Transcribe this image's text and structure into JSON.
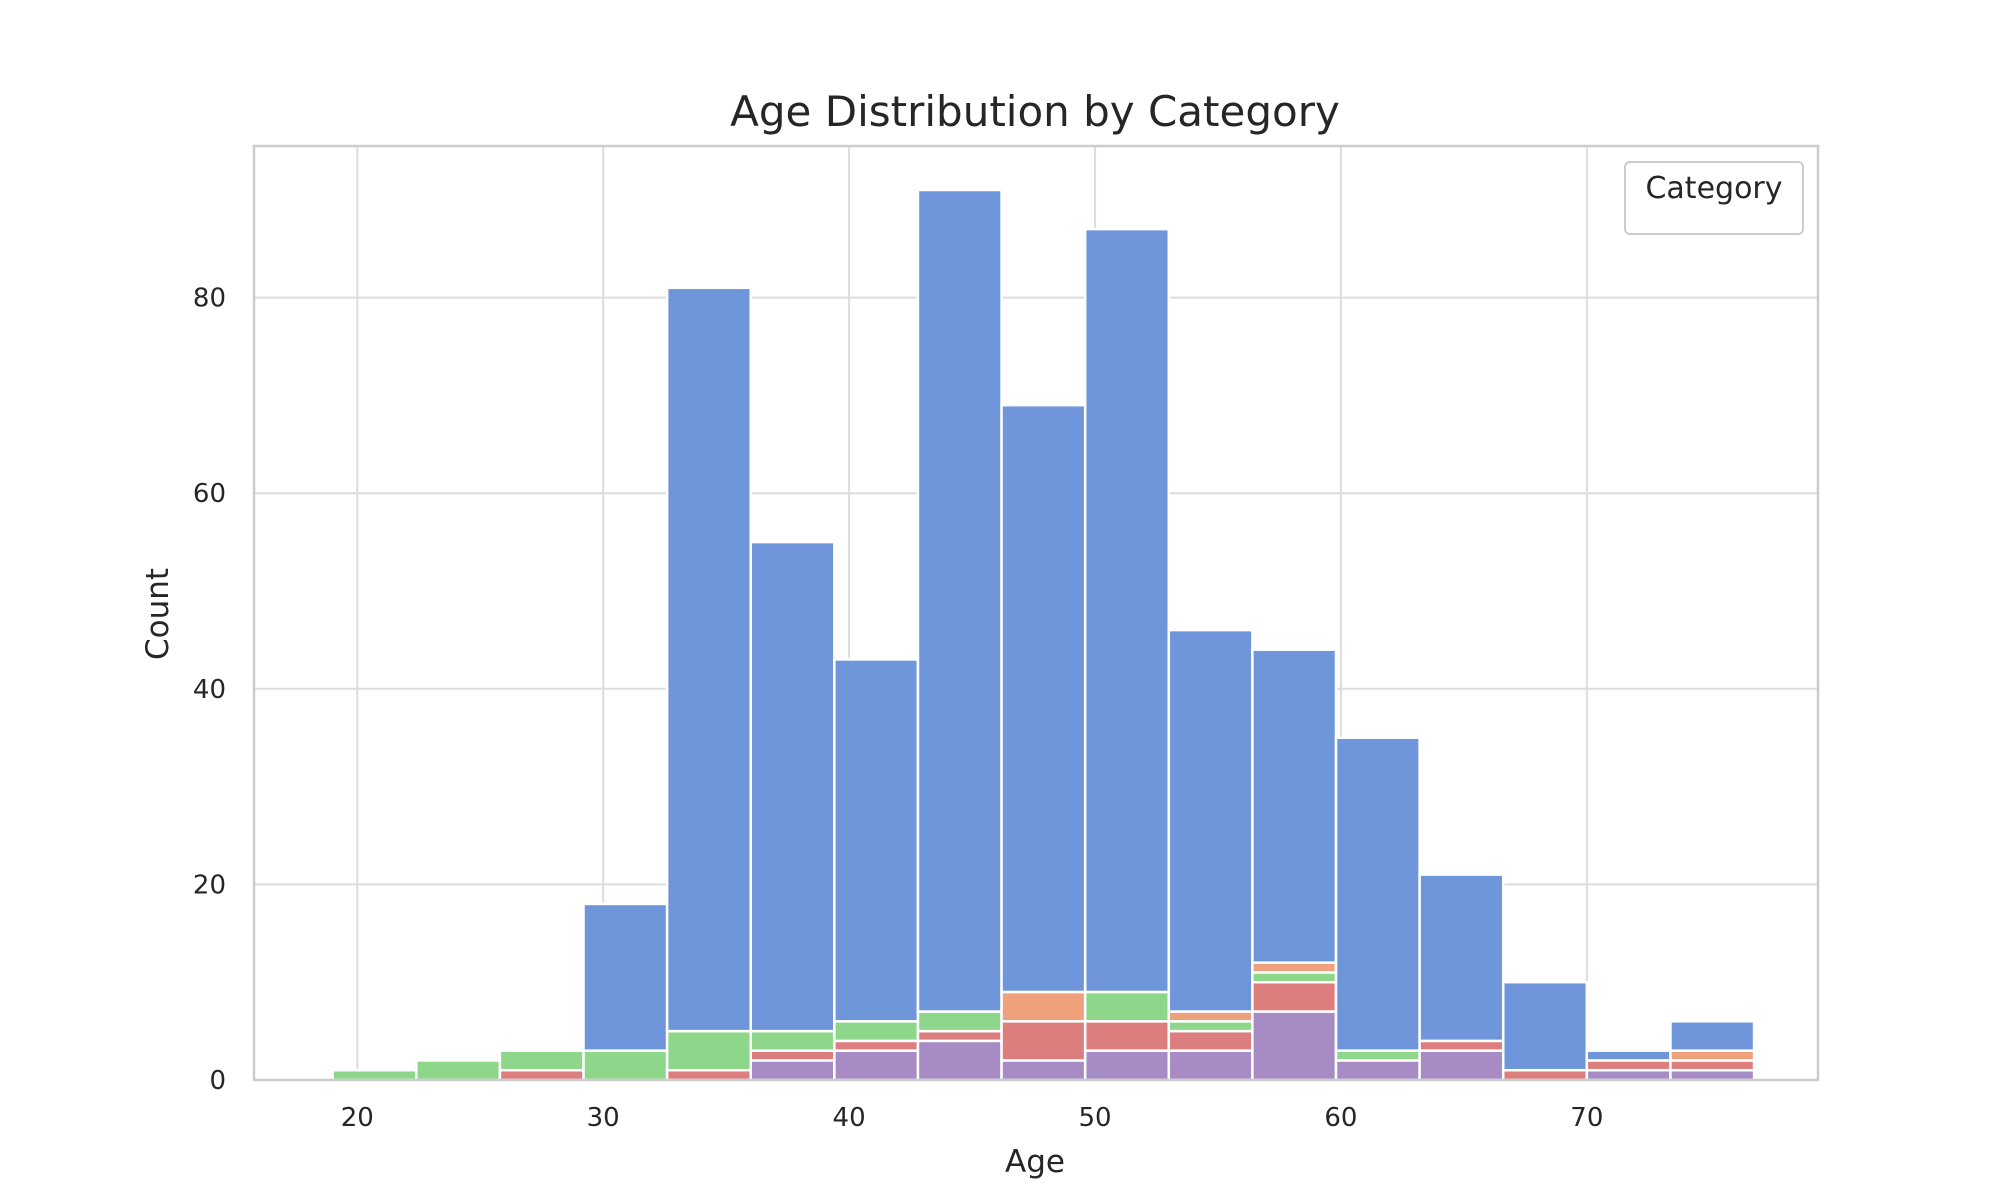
{
  "chart_data": {
    "type": "bar",
    "title": "Age Distribution by Category",
    "xlabel": "Age",
    "ylabel": "Count",
    "xlim": [
      15.8,
      79.4
    ],
    "ylim": [
      0,
      95.5
    ],
    "xticks": [
      20,
      30,
      40,
      50,
      60,
      70
    ],
    "yticks": [
      0,
      20,
      40,
      60,
      80
    ],
    "grid": true,
    "legend": {
      "title": "Category",
      "placement": "top-right",
      "entries": []
    },
    "bin_edges": [
      19,
      22.4,
      25.8,
      29.2,
      32.6,
      36,
      39.4,
      42.8,
      46.2,
      49.6,
      53,
      56.4,
      59.8,
      63.2,
      66.6,
      70,
      73.4,
      76.8
    ],
    "stacked": true,
    "series": [
      {
        "color": "#a68bc4",
        "values": [
          0,
          0,
          0,
          0,
          0,
          2,
          3,
          4,
          2,
          3,
          3,
          7,
          2,
          3,
          0,
          1,
          1
        ]
      },
      {
        "color": "#dd7e7e",
        "values": [
          0,
          0,
          1,
          0,
          1,
          1,
          1,
          1,
          4,
          3,
          2,
          3,
          0,
          1,
          1,
          1,
          1
        ]
      },
      {
        "color": "#8dd68a",
        "values": [
          1,
          2,
          2,
          3,
          4,
          2,
          2,
          2,
          0,
          3,
          1,
          1,
          1,
          0,
          0,
          0,
          0
        ]
      },
      {
        "color": "#eea17a",
        "values": [
          0,
          0,
          0,
          0,
          0,
          0,
          0,
          0,
          3,
          0,
          1,
          1,
          0,
          0,
          0,
          0,
          1
        ]
      },
      {
        "color": "#6f96da",
        "values": [
          0,
          0,
          0,
          15,
          76,
          50,
          37,
          84,
          60,
          78,
          39,
          32,
          32,
          17,
          9,
          1,
          3
        ]
      }
    ]
  }
}
